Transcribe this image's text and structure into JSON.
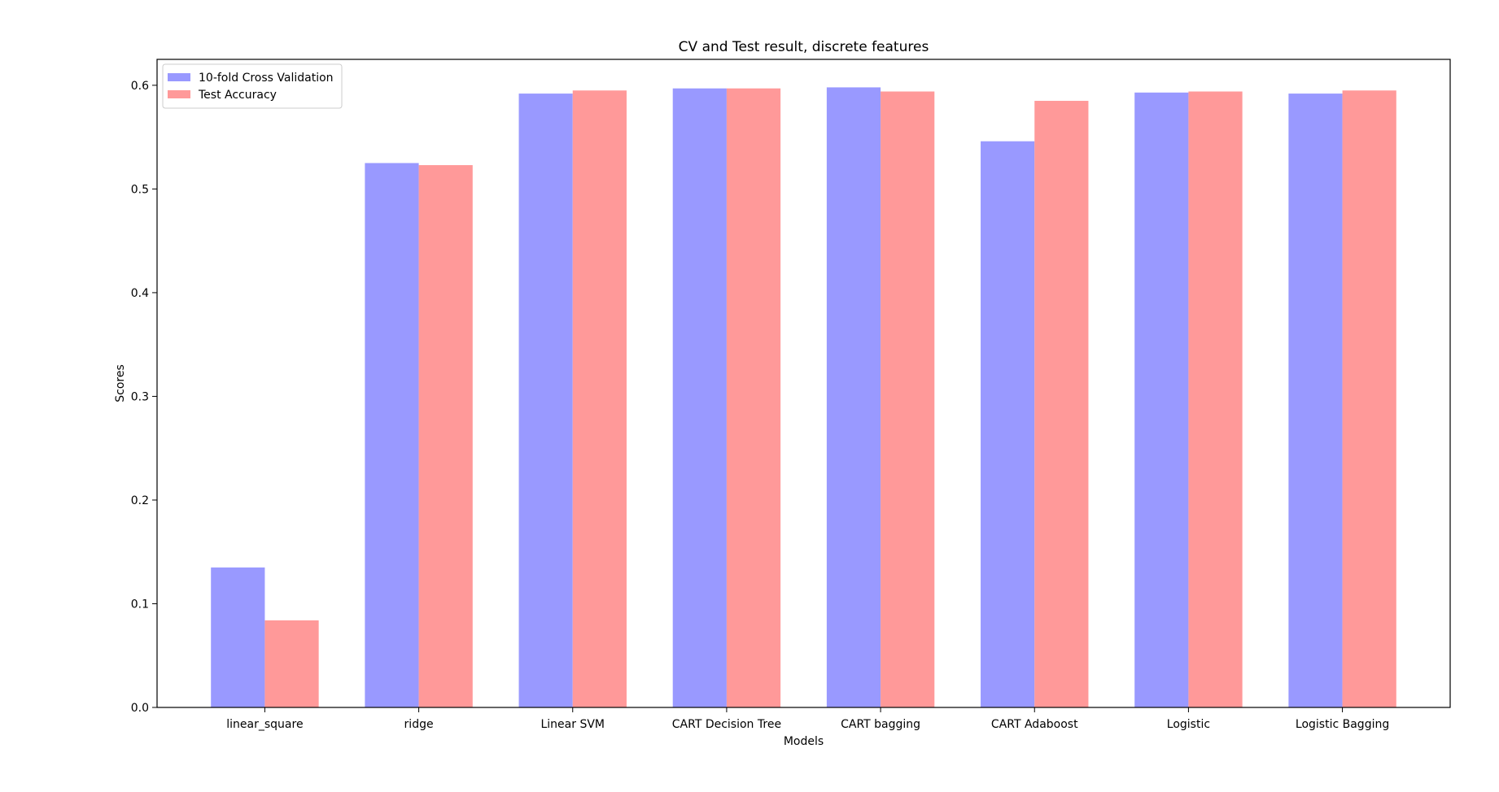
{
  "chart_data": {
    "type": "bar",
    "title": "CV and Test result, discrete features",
    "xlabel": "Models",
    "ylabel": "Scores",
    "ylim": [
      0,
      0.625
    ],
    "yticks": [
      "0.0",
      "0.1",
      "0.2",
      "0.3",
      "0.4",
      "0.5",
      "0.6"
    ],
    "grid": false,
    "legend_position": "top-left",
    "categories": [
      "linear_square",
      "ridge",
      "Linear SVM",
      "CART Decision Tree",
      "CART bagging",
      "CART Adaboost",
      "Logistic",
      "Logistic Bagging"
    ],
    "series": [
      {
        "name": "10-fold Cross Validation",
        "color": "#9999ff",
        "values": [
          0.135,
          0.525,
          0.592,
          0.597,
          0.598,
          0.546,
          0.593,
          0.592
        ]
      },
      {
        "name": "Test Accuracy",
        "color": "#ff9999",
        "values": [
          0.084,
          0.523,
          0.595,
          0.597,
          0.594,
          0.585,
          0.594,
          0.595
        ]
      }
    ]
  }
}
